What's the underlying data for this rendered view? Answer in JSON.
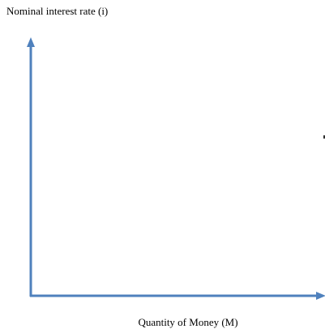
{
  "y_axis_label": "Nominal interest rate (i)",
  "x_axis_label": "Quantity of Money (M)"
}
